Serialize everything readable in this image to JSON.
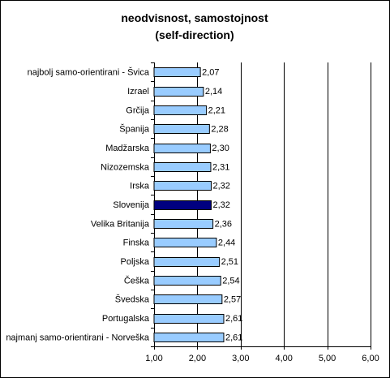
{
  "chart_data": {
    "type": "bar",
    "orientation": "horizontal",
    "title": "neodvisnost, samostojnost",
    "subtitle": "(self-direction)",
    "categories": [
      "najbolj samo-orientirani - Švica",
      "Izrael",
      "Grčija",
      "Španija",
      "Madžarska",
      "Nizozemska",
      "Irska",
      "Slovenija",
      "Velika Britanija",
      "Finska",
      "Poljska",
      "Češka",
      "Švedska",
      "Portugalska",
      "najmanj samo-orientirani - Norveška"
    ],
    "values": [
      2.07,
      2.14,
      2.21,
      2.28,
      2.3,
      2.31,
      2.32,
      2.32,
      2.36,
      2.44,
      2.51,
      2.54,
      2.57,
      2.61,
      2.61
    ],
    "value_labels": [
      "2,07",
      "2,14",
      "2,21",
      "2,28",
      "2,30",
      "2,31",
      "2,32",
      "2,32",
      "2,36",
      "2,44",
      "2,51",
      "2,54",
      "2,57",
      "2,61",
      "2,61"
    ],
    "highlight_category": "Slovenija",
    "xlim": [
      1,
      6
    ],
    "xticks": [
      1,
      2,
      3,
      4,
      5,
      6
    ],
    "xtick_labels": [
      "1,00",
      "2,00",
      "3,00",
      "4,00",
      "5,00",
      "6,00"
    ],
    "xlabel": "",
    "ylabel": "",
    "grid": "vertical",
    "legend": "none",
    "colors": {
      "bar_fill": "#99ccff",
      "bar_highlight": "#000080",
      "bar_stroke": "#000000",
      "grid": "#000000"
    }
  }
}
